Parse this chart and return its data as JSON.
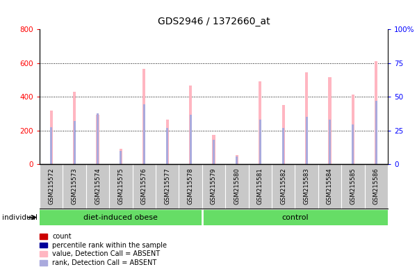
{
  "title": "GDS2946 / 1372660_at",
  "samples": [
    "GSM215572",
    "GSM215573",
    "GSM215574",
    "GSM215575",
    "GSM215576",
    "GSM215577",
    "GSM215578",
    "GSM215579",
    "GSM215580",
    "GSM215581",
    "GSM215582",
    "GSM215583",
    "GSM215584",
    "GSM215585",
    "GSM215586"
  ],
  "n_obese": 7,
  "n_control": 8,
  "ylim_left": [
    0,
    800
  ],
  "ylim_right": [
    0,
    100
  ],
  "yticks_left": [
    0,
    200,
    400,
    600,
    800
  ],
  "ytick_labels_left": [
    "0",
    "200",
    "400",
    "600",
    "800"
  ],
  "yticks_right": [
    0,
    25,
    50,
    75,
    100
  ],
  "ytick_labels_right": [
    "0",
    "25",
    "50",
    "75",
    "100%"
  ],
  "absent_bar_color": "#FFB6C1",
  "absent_rank_color": "#AAAADD",
  "plot_bg": "#FFFFFF",
  "label_bg": "#C8C8C8",
  "green_color": "#66DD66",
  "absent_values": [
    320,
    430,
    295,
    90,
    565,
    265,
    465,
    175,
    55,
    490,
    350,
    545,
    515,
    415,
    610
  ],
  "absent_ranks": [
    220,
    255,
    300,
    78,
    355,
    215,
    295,
    145,
    46,
    265,
    215,
    280,
    265,
    235,
    375
  ],
  "bar_width": 0.12,
  "rank_bar_width": 0.09,
  "legend_items": [
    {
      "label": "count",
      "color": "#CC0000"
    },
    {
      "label": "percentile rank within the sample",
      "color": "#000099"
    },
    {
      "label": "value, Detection Call = ABSENT",
      "color": "#FFB6C1"
    },
    {
      "label": "rank, Detection Call = ABSENT",
      "color": "#AAAADD"
    }
  ],
  "grid_yticks": [
    200,
    400,
    600
  ]
}
